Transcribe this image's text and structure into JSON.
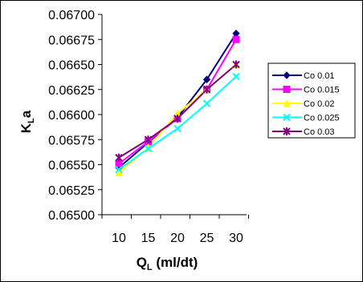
{
  "chart_data": {
    "type": "line",
    "x": [
      10,
      15,
      20,
      25,
      30
    ],
    "x_ticks": [
      "10",
      "15",
      "20",
      "25",
      "30"
    ],
    "y_ticks": [
      "0.06500",
      "0.06525",
      "0.06550",
      "0.06575",
      "0.06600",
      "0.06625",
      "0.06650",
      "0.06675",
      "0.06700"
    ],
    "xlabel_main": "Q",
    "xlabel_sub": "L",
    "xlabel_rest": " (ml/dt)",
    "ylabel_main": "K",
    "ylabel_sub": "L",
    "ylabel_rest": "a",
    "ylim": [
      0.065,
      0.067
    ],
    "grid": false,
    "legend_position": "right",
    "series": [
      {
        "name": "Co 0.01",
        "color": "#000080",
        "marker": "diamond",
        "values": [
          0.06547,
          0.06572,
          0.06597,
          0.06635,
          0.06681
        ]
      },
      {
        "name": "Co 0.015",
        "color": "#ff00ff",
        "marker": "square",
        "values": [
          0.06551,
          0.06573,
          0.06596,
          0.06625,
          0.06675
        ]
      },
      {
        "name": "Co 0.02",
        "color": "#ffff00",
        "marker": "triangle",
        "values": [
          0.06542,
          0.06567,
          0.06601,
          0.06625,
          0.0665
        ]
      },
      {
        "name": "Co 0.025",
        "color": "#00ffff",
        "marker": "x",
        "values": [
          0.06545,
          0.06566,
          0.06586,
          0.06611,
          0.06638
        ]
      },
      {
        "name": "Co 0.03",
        "color": "#800080",
        "marker": "star",
        "values": [
          0.06557,
          0.06575,
          0.06596,
          0.06625,
          0.0665
        ]
      }
    ]
  }
}
